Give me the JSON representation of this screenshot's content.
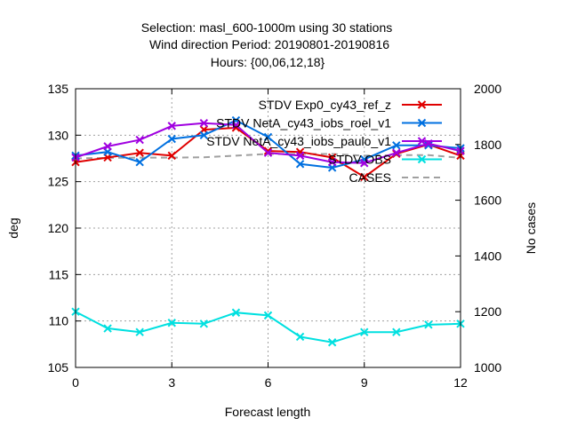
{
  "header": {
    "title_lines": [
      "Selection: masl_600-1000m using    30 stations",
      "Wind direction    Period: 20190801-20190816",
      "Hours: {00,06,12,18}"
    ]
  },
  "colors": {
    "ref": "#e00000",
    "roel": "#0070e0",
    "paulo": "#a000e0",
    "obs": "#00e0e0",
    "cases": "#a0a0a0"
  },
  "chart_data": {
    "type": "line",
    "title": "Selection: masl_600-1000m using    30 stations / Wind direction    Period: 20190801-20190816 / Hours: {00,06,12,18}",
    "xlabel": "Forecast length",
    "ylabel": "deg",
    "y2label": "No cases",
    "xlim": [
      0,
      12
    ],
    "ylim": [
      105,
      135
    ],
    "y2lim": [
      1000,
      2000
    ],
    "xticks": [
      "0",
      "3",
      "6",
      "9",
      "12"
    ],
    "yticks": [
      "105",
      "110",
      "115",
      "120",
      "125",
      "130",
      "135"
    ],
    "y2ticks": [
      "1000",
      "1200",
      "1400",
      "1600",
      "1800",
      "2000"
    ],
    "grid": true,
    "legend_position": "top-right",
    "series": [
      {
        "name": "STDV Exp0_cy43_ref_z",
        "color_key": "ref",
        "axis": "left",
        "style": "solid",
        "marker": "x",
        "x": [
          0,
          1,
          2,
          3,
          4,
          5,
          6,
          7,
          8,
          9,
          10,
          11,
          12
        ],
        "values": [
          127.1,
          127.6,
          128.1,
          127.8,
          130.6,
          130.8,
          128.3,
          128.2,
          127.6,
          125.5,
          128.0,
          129.0,
          127.8
        ]
      },
      {
        "name": "STDV NetA_cy43_iobs_roel_v1",
        "color_key": "roel",
        "axis": "left",
        "style": "solid",
        "marker": "x",
        "x": [
          0,
          1,
          2,
          3,
          4,
          5,
          6,
          7,
          8,
          9,
          10,
          11,
          12
        ],
        "values": [
          127.8,
          128.2,
          127.1,
          129.6,
          130.0,
          131.6,
          129.8,
          126.9,
          126.5,
          127.4,
          128.9,
          128.9,
          128.6
        ]
      },
      {
        "name": "STDV NetA_cy43_iobs_paulo_v1",
        "color_key": "paulo",
        "axis": "left",
        "style": "solid",
        "marker": "x",
        "x": [
          0,
          1,
          2,
          3,
          4,
          5,
          6,
          7,
          8,
          9,
          10,
          11,
          12
        ],
        "values": [
          127.6,
          128.8,
          129.5,
          131.0,
          131.3,
          131.1,
          128.1,
          127.8,
          127.1,
          127.0,
          128.1,
          129.1,
          128.3
        ]
      },
      {
        "name": "STDV OBS",
        "color_key": "obs",
        "axis": "left",
        "style": "solid",
        "marker": "x",
        "x": [
          0,
          1,
          2,
          3,
          4,
          5,
          6,
          7,
          8,
          9,
          10,
          11,
          12
        ],
        "values": [
          111.0,
          109.2,
          108.8,
          109.8,
          109.7,
          110.9,
          110.6,
          108.3,
          107.7,
          108.8,
          108.8,
          109.6,
          109.7
        ]
      },
      {
        "name": "CASES",
        "color_key": "cases",
        "axis": "right",
        "style": "dashed",
        "marker": "none",
        "x": [
          0,
          1,
          2,
          3,
          4,
          5,
          6,
          7,
          8,
          9,
          10,
          11,
          12
        ],
        "values": [
          1750,
          1752,
          1753,
          1753,
          1754,
          1760,
          1766,
          1766,
          1766,
          1760,
          1762,
          1762,
          1752
        ]
      }
    ]
  }
}
